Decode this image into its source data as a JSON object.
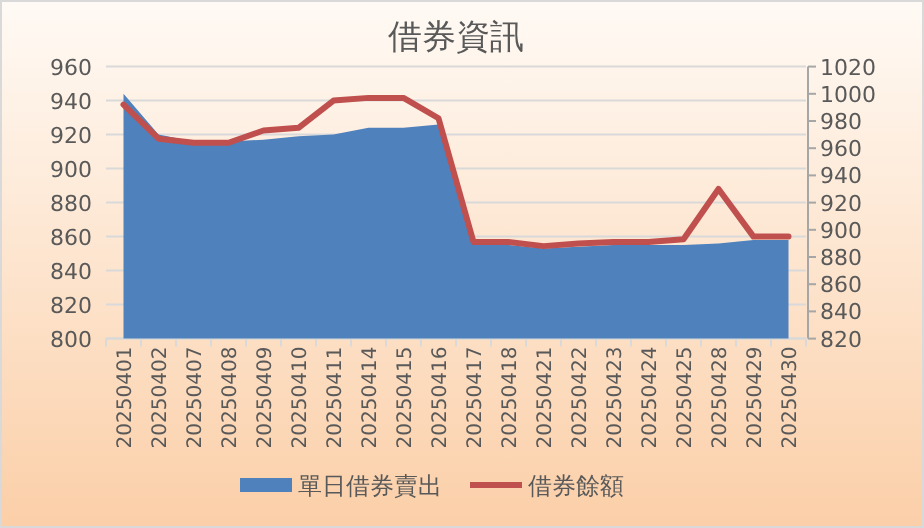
{
  "chart_data": {
    "type": "area",
    "title": "借券資訊",
    "categories": [
      "20250401",
      "20250402",
      "20250407",
      "20250408",
      "20250409",
      "20250410",
      "20250411",
      "20250414",
      "20250415",
      "20250416",
      "20250417",
      "20250418",
      "20250421",
      "20250422",
      "20250423",
      "20250424",
      "20250425",
      "20250428",
      "20250429",
      "20250430"
    ],
    "series": [
      {
        "name": "單日借券賣出",
        "color": "#4f81bd",
        "values": [
          944,
          920,
          916,
          916,
          917,
          919,
          920,
          924,
          924,
          926,
          855,
          855,
          853,
          854,
          855,
          855,
          855,
          856,
          858,
          858
        ]
      },
      {
        "name": "借券餘額",
        "type": "line",
        "axis": "y2",
        "color": "#c0504d",
        "values": [
          992,
          967,
          964,
          964,
          973,
          975,
          995,
          997,
          997,
          982,
          891,
          891,
          888,
          890,
          891,
          891,
          893,
          930,
          895,
          895
        ]
      }
    ],
    "ylim": [
      800,
      960
    ],
    "yticks": [
      800,
      820,
      840,
      860,
      880,
      900,
      920,
      940,
      960
    ],
    "y2lim": [
      820,
      1020
    ],
    "y2ticks": [
      820,
      840,
      860,
      880,
      900,
      920,
      940,
      960,
      980,
      1000,
      1020
    ],
    "grid": "y",
    "legend": "bottom"
  }
}
